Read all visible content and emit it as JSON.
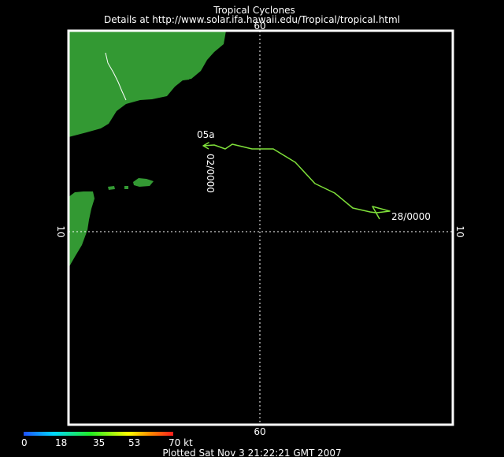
{
  "header": {
    "title": "Tropical Cyclones",
    "details": "Details at http://www.solar.ifa.hawaii.edu/Tropical/tropical.html"
  },
  "axes": {
    "top_lon": "60",
    "bottom_lon": "60",
    "left_lat": "10",
    "right_lat": "10"
  },
  "storm": {
    "name": "05a",
    "start_label": "28/0000",
    "end_label": "02/0000"
  },
  "colors": {
    "land": "#339933",
    "track": "#7fe03a",
    "frame": "#ffffff",
    "grid": "#ffffff",
    "background": "#000000"
  },
  "legend": {
    "ticks": [
      "0",
      "18",
      "35",
      "53",
      "70 kt"
    ],
    "gradient": [
      "#1e50ff",
      "#00d8ff",
      "#22ee22",
      "#ffff00",
      "#ff8800",
      "#ff1e1e"
    ]
  },
  "footer": {
    "plotted": "Plotted Sat Nov 3 21:22:21 GMT 2007"
  }
}
